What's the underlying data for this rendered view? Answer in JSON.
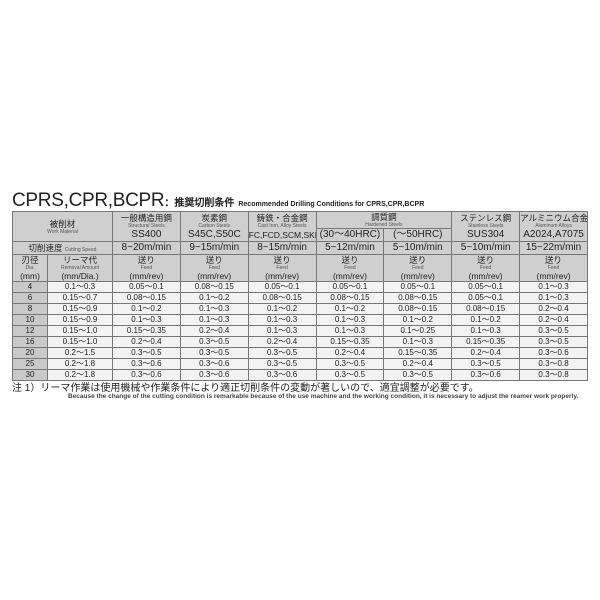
{
  "title": {
    "main": "CPRS,CPR,BCPR",
    "colon": "：",
    "jp": "推奨切削条件",
    "en": "Recommended Drilling Conditions for CPRS,CPR,BCPR"
  },
  "header": {
    "work_material": {
      "jp": "被削材",
      "en": "Work Material"
    },
    "materials": [
      {
        "jp": "一般構造用鋼",
        "en": "Structural Steels",
        "grade": "SS400",
        "speed": "8~20m/min"
      },
      {
        "jp": "炭素鋼",
        "en": "Carbon Steels",
        "grade": "S45C,S50C",
        "speed": "9~15m/min"
      },
      {
        "jp": "鋳鉄・合金鋼",
        "en": "Cast Iron, Alloy Steels",
        "grade": "FC,FCD,SCM,SKD",
        "speed": "8~15m/min"
      },
      {
        "jp": "調質鋼",
        "en": "Hardened Steels",
        "grade": "(30～40HRC)",
        "grade2": "(～50HRC)",
        "speed": "5~12m/min",
        "speed2": "5~10m/min"
      },
      {
        "jp": "ステンレス鋼",
        "en": "Stainless Steels",
        "grade": "SUS304",
        "speed": "5~10m/min"
      },
      {
        "jp": "アルミニウム合金",
        "en": "Aluminum Alloys",
        "grade": "A2024,A7075",
        "speed": "15~22m/min"
      }
    ],
    "cutting_speed": {
      "jp": "切削速度",
      "en": "Cutting Speed"
    },
    "dia": {
      "jp": "刃径",
      "en": "Dia.",
      "unit": "(mm)"
    },
    "removal": {
      "jp": "リーマ代",
      "en": "Removal Amount",
      "unit": "(mm/Dia.)"
    },
    "feed": {
      "jp": "送り",
      "en": "Feed",
      "unit": "(mm/rev)"
    }
  },
  "rows": [
    [
      "4",
      "0.1～0.3",
      "0.05～0.1",
      "0.08～0.15",
      "0.05～0.1",
      "0.05～0.1",
      "0.05～0.1",
      "0.05～0.1",
      "0.1～0.3"
    ],
    [
      "6",
      "0.15～0.7",
      "0.08～0.15",
      "0.1～0.2",
      "0.08～0.15",
      "0.08～0.15",
      "0.08～0.15",
      "0.05～0.1",
      "0.1～0.3"
    ],
    [
      "8",
      "0.15～0.9",
      "0.1～0.2",
      "0.1～0.3",
      "0.1～0.2",
      "0.1～0.2",
      "0.08～0.15",
      "0.08～0.15",
      "0.2～0.4"
    ],
    [
      "10",
      "0.15～0.9",
      "0.1～0.3",
      "0.1～0.3",
      "0.1～0.3",
      "0.1～0.3",
      "0.1～0.2",
      "0.1～0.2",
      "0.2～0.4"
    ],
    [
      "12",
      "0.15～1.0",
      "0.15～0.35",
      "0.2～0.4",
      "0.1～0.3",
      "0.1～0.3",
      "0.1～0.25",
      "0.1～0.3",
      "0.3～0.5"
    ],
    [
      "16",
      "0.15～1.0",
      "0.2～0.4",
      "0.3～0.5",
      "0.2～0.4",
      "0.15～0.35",
      "0.1～0.3",
      "0.15～0.35",
      "0.3～0.5"
    ],
    [
      "20",
      "0.2～1.5",
      "0.3～0.5",
      "0.3～0.5",
      "0.3～0.5",
      "0.2～0.4",
      "0.15～0.35",
      "0.2～0.4",
      "0.3～0.6"
    ],
    [
      "25",
      "0.2～1.8",
      "0.3～0.6",
      "0.3～0.6",
      "0.3～0.5",
      "0.3～0.5",
      "0.2～0.4",
      "0.3～0.5",
      "0.3～0.8"
    ],
    [
      "30",
      "0.2～1.8",
      "0.3～0.6",
      "0.3～0.6",
      "0.3～0.6",
      "0.3～0.5",
      "0.3～0.5",
      "0.3～0.6",
      "0.3～0.8"
    ]
  ],
  "note": {
    "jp": "注 1）リーマ作業は使用機械や作業条件により適正切削条件の変動が著しいので、適宜調整が必要です。",
    "en": "Because the change of the cutting condition is remarkable because of the use machine and the working condition, it is necessary to adjust the reamer work properly."
  }
}
